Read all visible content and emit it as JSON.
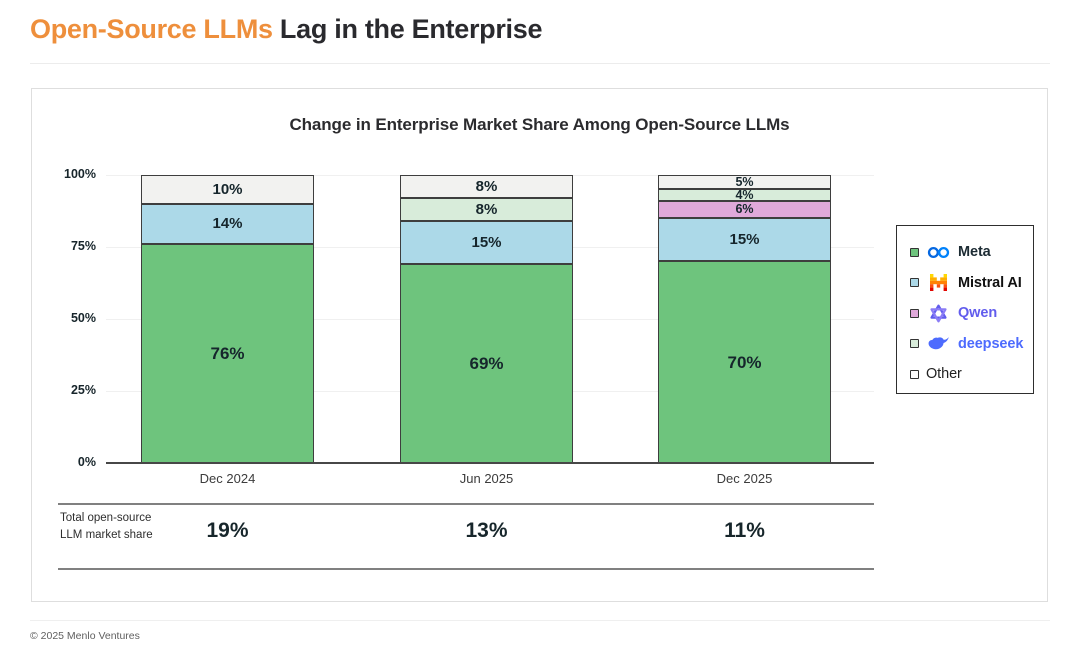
{
  "header": {
    "title_accent": "Open-Source LLMs",
    "title_rest": " Lag in the Enterprise"
  },
  "footer": {
    "copyright": "© 2025 Menlo Ventures"
  },
  "colors": {
    "accent_orange": "#EE8F3C",
    "title_dark": "#2A2A2E",
    "segment_border": "#3E3E3E",
    "axis_line": "#474747"
  },
  "chart_data": {
    "type": "bar",
    "stacked": true,
    "title": "Change in Enterprise Market Share Among Open-Source LLMs",
    "categories": [
      "Dec 2024",
      "Jun 2025",
      "Dec 2025"
    ],
    "series": [
      {
        "name": "Meta",
        "color": "#6EC47D",
        "values": [
          76,
          69,
          70
        ]
      },
      {
        "name": "Mistral AI",
        "color": "#ACD9E8",
        "values": [
          14,
          15,
          15
        ]
      },
      {
        "name": "Qwen",
        "color": "#E0A9DA",
        "values": [
          0,
          0,
          6
        ]
      },
      {
        "name": "deepseek",
        "color": "#D8ECDA",
        "values": [
          0,
          8,
          4
        ]
      },
      {
        "name": "Other",
        "color": "#F2F2F0",
        "values": [
          10,
          8,
          5
        ]
      }
    ],
    "value_suffix": "%",
    "y_ticks": [
      "0%",
      "25%",
      "50%",
      "75%",
      "100%"
    ],
    "ylim": [
      0,
      100
    ],
    "grid": true,
    "legend_position": "right",
    "totals_row": {
      "label": "Total open-source LLM market share",
      "values": [
        "19%",
        "13%",
        "11%"
      ]
    }
  },
  "legend": [
    {
      "label": "Meta",
      "icon": "meta-logo",
      "swatch": "#6EC47D",
      "label_color": "#1C2B33",
      "weight": 600
    },
    {
      "label": "Mistral AI",
      "icon": "mistral-logo",
      "swatch": "#ACD9E8",
      "label_color": "#111111",
      "weight": 700
    },
    {
      "label": "Qwen",
      "icon": "qwen-logo",
      "swatch": "#E0A9DA",
      "label_color": "#615CED",
      "weight": 700
    },
    {
      "label": "deepseek",
      "icon": "deepseek-logo",
      "swatch": "#D8ECDA",
      "label_color": "#4D6BFE",
      "weight": 700
    },
    {
      "label": "Other",
      "icon": "",
      "swatch": "#FFFFFF",
      "label_color": "#222222",
      "weight": 400
    }
  ]
}
